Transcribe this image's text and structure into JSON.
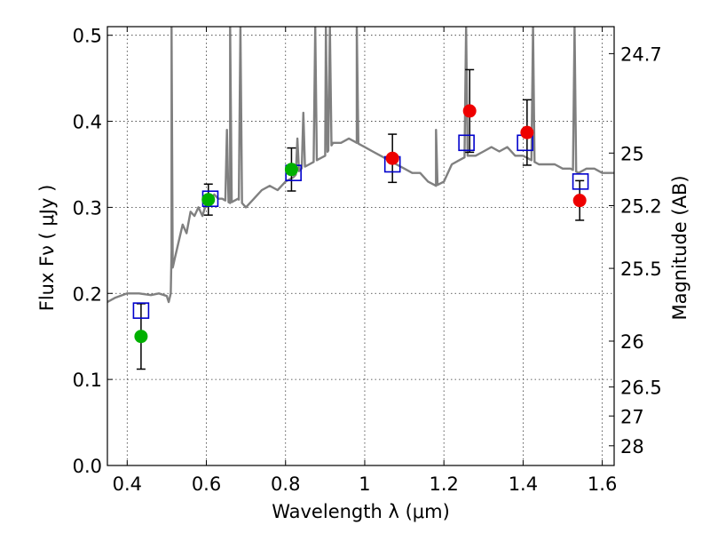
{
  "chart_data": {
    "type": "scatter",
    "title": "",
    "xlabel": "Wavelength  λ (μm)",
    "ylabel": "Flux  Fν  ( μJy )",
    "ylabel_right": "Magnitude (AB)",
    "xlim": [
      0.35,
      1.63
    ],
    "ylim": [
      0.0,
      0.51
    ],
    "grid": true,
    "colors": {
      "spectrum": "#808080",
      "model": "#0000cc",
      "green": "#00b000",
      "red": "#ee0000",
      "errorbar": "#000000"
    },
    "x_ticks": [
      {
        "value": 0.4,
        "label": "0.4"
      },
      {
        "value": 0.6,
        "label": "0.6"
      },
      {
        "value": 0.8,
        "label": "0.8"
      },
      {
        "value": 1.0,
        "label": "1"
      },
      {
        "value": 1.2,
        "label": "1.2"
      },
      {
        "value": 1.4,
        "label": "1.4"
      },
      {
        "value": 1.6,
        "label": "1.6"
      }
    ],
    "y_ticks": [
      {
        "value": 0.0,
        "label": "0.0"
      },
      {
        "value": 0.1,
        "label": "0.1"
      },
      {
        "value": 0.2,
        "label": "0.2"
      },
      {
        "value": 0.3,
        "label": "0.3"
      },
      {
        "value": 0.4,
        "label": "0.4"
      },
      {
        "value": 0.5,
        "label": "0.5"
      }
    ],
    "mag_ticks": [
      {
        "value": 24.7,
        "label": "24.7"
      },
      {
        "value": 25.0,
        "label": "25"
      },
      {
        "value": 25.2,
        "label": "25.2"
      },
      {
        "value": 25.5,
        "label": "25.5"
      },
      {
        "value": 26.0,
        "label": "26"
      },
      {
        "value": 26.5,
        "label": "26.5"
      },
      {
        "value": 27.0,
        "label": "27"
      },
      {
        "value": 28.0,
        "label": "28"
      }
    ],
    "spectrum": {
      "x": [
        0.35,
        0.37,
        0.4,
        0.43,
        0.46,
        0.48,
        0.5,
        0.505,
        0.51,
        0.512,
        0.515,
        0.52,
        0.53,
        0.54,
        0.55,
        0.56,
        0.57,
        0.58,
        0.59,
        0.6,
        0.61,
        0.62,
        0.63,
        0.64,
        0.66,
        0.68,
        0.7,
        0.72,
        0.74,
        0.76,
        0.78,
        0.8,
        0.82,
        0.84,
        0.86,
        0.88,
        0.9,
        0.92,
        0.94,
        0.96,
        0.98,
        1.0,
        1.02,
        1.04,
        1.06,
        1.08,
        1.1,
        1.12,
        1.14,
        1.16,
        1.18,
        1.2,
        1.22,
        1.24,
        1.26,
        1.28,
        1.3,
        1.32,
        1.34,
        1.36,
        1.38,
        1.4,
        1.42,
        1.44,
        1.46,
        1.48,
        1.5,
        1.52,
        1.54,
        1.56,
        1.58,
        1.6,
        1.63
      ],
      "y": [
        0.19,
        0.195,
        0.2,
        0.2,
        0.198,
        0.2,
        0.197,
        0.19,
        0.2,
        0.25,
        0.23,
        0.24,
        0.26,
        0.28,
        0.27,
        0.295,
        0.29,
        0.3,
        0.29,
        0.305,
        0.31,
        0.315,
        0.31,
        0.31,
        0.305,
        0.31,
        0.3,
        0.31,
        0.32,
        0.325,
        0.32,
        0.33,
        0.335,
        0.345,
        0.35,
        0.355,
        0.36,
        0.375,
        0.375,
        0.38,
        0.375,
        0.37,
        0.365,
        0.36,
        0.355,
        0.35,
        0.345,
        0.34,
        0.34,
        0.33,
        0.325,
        0.33,
        0.35,
        0.355,
        0.36,
        0.36,
        0.365,
        0.37,
        0.365,
        0.37,
        0.36,
        0.36,
        0.355,
        0.35,
        0.35,
        0.35,
        0.345,
        0.345,
        0.34,
        0.345,
        0.345,
        0.34,
        0.34
      ]
    },
    "spectrum_lines": [
      {
        "x": 0.512,
        "peak": 0.51
      },
      {
        "x": 0.66,
        "peak": 0.51
      },
      {
        "x": 0.686,
        "peak": 0.51
      },
      {
        "x": 0.875,
        "peak": 0.51
      },
      {
        "x": 0.902,
        "peak": 0.51
      },
      {
        "x": 0.912,
        "peak": 0.51
      },
      {
        "x": 0.98,
        "peak": 0.51
      },
      {
        "x": 1.256,
        "peak": 0.51
      },
      {
        "x": 1.425,
        "peak": 0.51
      },
      {
        "x": 1.53,
        "peak": 0.51
      },
      {
        "x": 0.652,
        "peak": 0.39
      },
      {
        "x": 0.845,
        "peak": 0.41
      },
      {
        "x": 0.83,
        "peak": 0.38
      },
      {
        "x": 1.18,
        "peak": 0.39
      }
    ],
    "model_points": {
      "x": [
        0.435,
        0.61,
        0.82,
        1.07,
        1.257,
        1.405,
        1.545
      ],
      "y": [
        0.18,
        0.31,
        0.34,
        0.35,
        0.375,
        0.375,
        0.33
      ]
    },
    "green_points": {
      "x": [
        0.435,
        0.605,
        0.815
      ],
      "y": [
        0.15,
        0.309,
        0.344
      ],
      "yerr": [
        0.038,
        0.018,
        0.025
      ]
    },
    "red_points": {
      "x": [
        1.07,
        1.265,
        1.41,
        1.543
      ],
      "y": [
        0.357,
        0.412,
        0.387,
        0.308
      ],
      "yerr": [
        0.028,
        0.048,
        0.038,
        0.023
      ]
    }
  }
}
